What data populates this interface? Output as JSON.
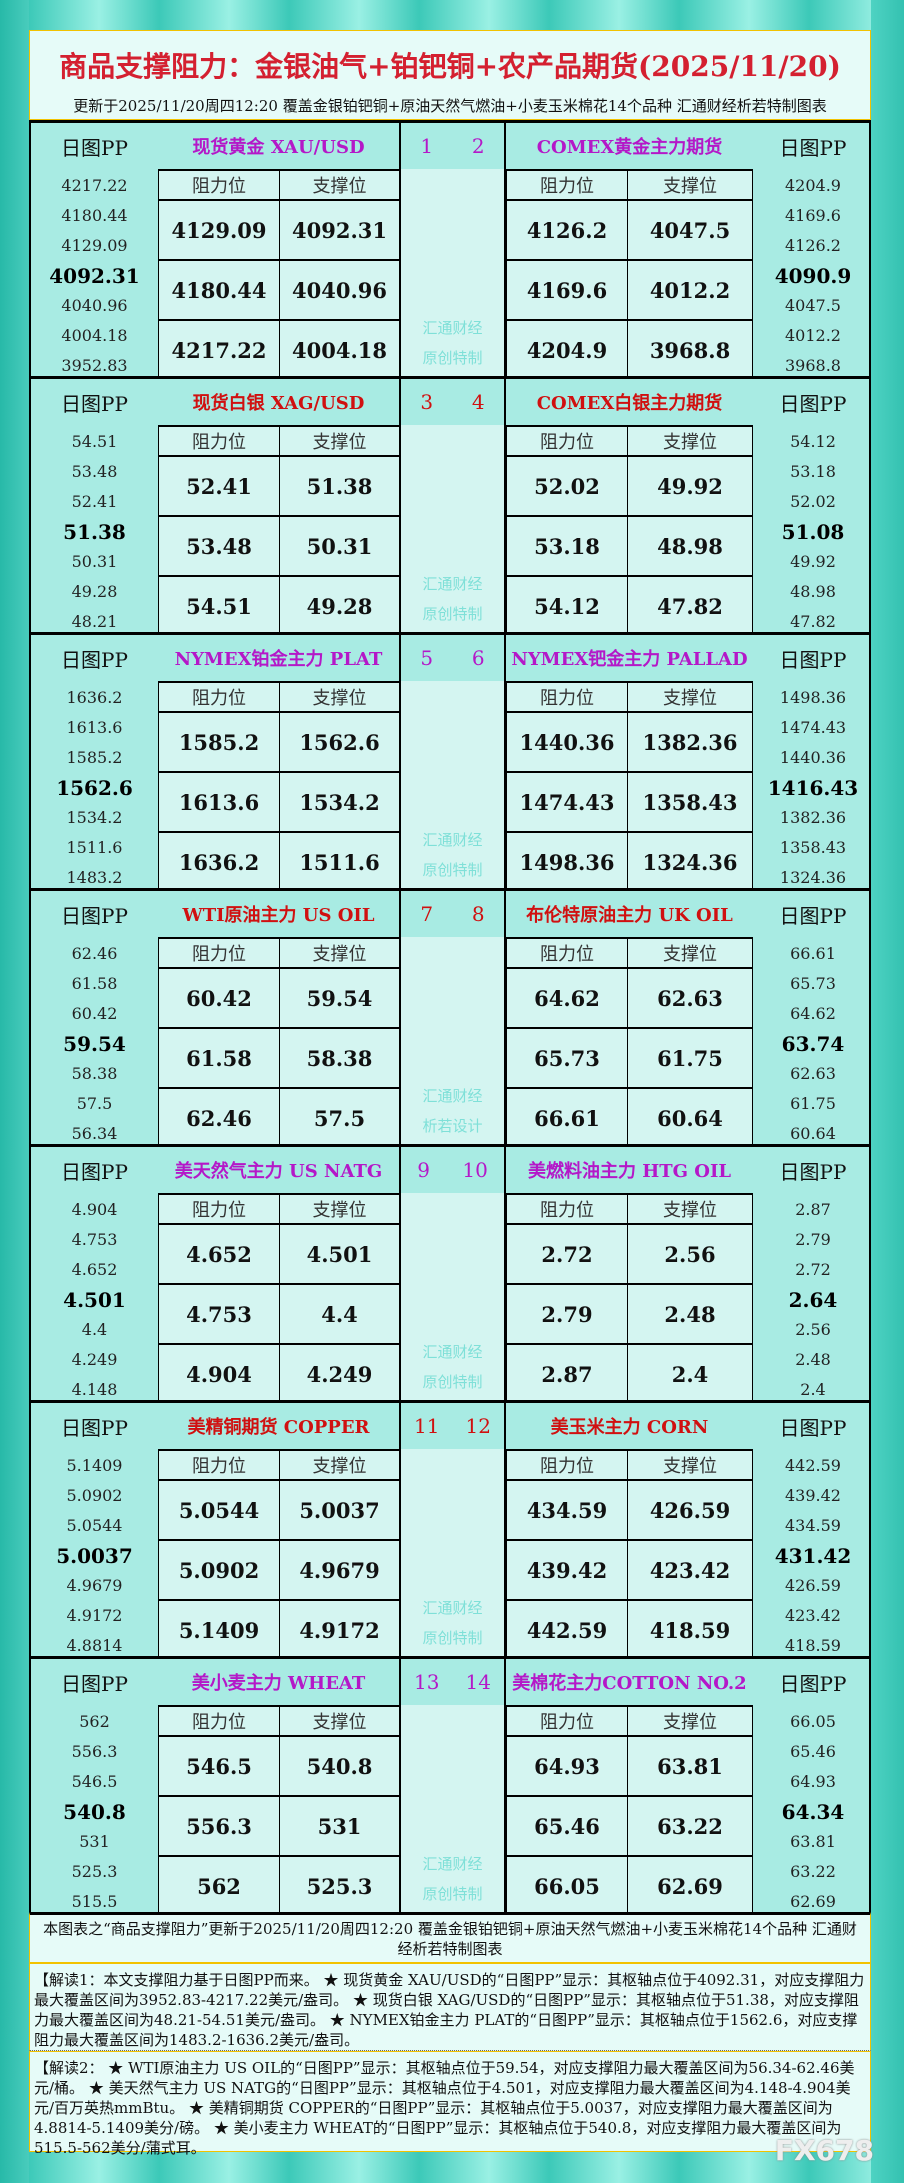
{
  "header": {
    "title": "商品支撑阻力：金银油气+铂钯铜+农产品期货(2025/11/20)",
    "subtitle": "更新于2025/11/20周四12:20  覆盖金银铂钯铜+原油天然气燃油+小麦玉米棉花14个品种  汇通财经析若特制图表"
  },
  "labels": {
    "pp": "日图PP",
    "resist": "阻力位",
    "support": "支撑位"
  },
  "colors": {
    "purple": "#b418c8",
    "red": "#d01010",
    "bg": "#a8ebe3",
    "cell": "#d4f5f1"
  },
  "sections": [
    {
      "color": "#b418c8",
      "nums": [
        "1",
        "2"
      ],
      "wm": [
        "汇通财经",
        "原创特制"
      ],
      "left": {
        "title": "现货黄金 XAU/USD",
        "pp": [
          "4217.22",
          "4180.44",
          "4129.09",
          "4092.31",
          "4040.96",
          "4004.18",
          "3952.83"
        ],
        "resist": [
          "4129.09",
          "4180.44",
          "4217.22"
        ],
        "support": [
          "4092.31",
          "4040.96",
          "4004.18"
        ]
      },
      "right": {
        "title": "COMEX黄金主力期货",
        "pp": [
          "4204.9",
          "4169.6",
          "4126.2",
          "4090.9",
          "4047.5",
          "4012.2",
          "3968.8"
        ],
        "resist": [
          "4126.2",
          "4169.6",
          "4204.9"
        ],
        "support": [
          "4047.5",
          "4012.2",
          "3968.8"
        ]
      }
    },
    {
      "color": "#d01010",
      "nums": [
        "3",
        "4"
      ],
      "wm": [
        "汇通财经",
        "原创特制"
      ],
      "left": {
        "title": "现货白银 XAG/USD",
        "pp": [
          "54.51",
          "53.48",
          "52.41",
          "51.38",
          "50.31",
          "49.28",
          "48.21"
        ],
        "resist": [
          "52.41",
          "53.48",
          "54.51"
        ],
        "support": [
          "51.38",
          "50.31",
          "49.28"
        ]
      },
      "right": {
        "title": "COMEX白银主力期货",
        "pp": [
          "54.12",
          "53.18",
          "52.02",
          "51.08",
          "49.92",
          "48.98",
          "47.82"
        ],
        "resist": [
          "52.02",
          "53.18",
          "54.12"
        ],
        "support": [
          "49.92",
          "48.98",
          "47.82"
        ]
      }
    },
    {
      "color": "#b418c8",
      "nums": [
        "5",
        "6"
      ],
      "wm": [
        "汇通财经",
        "原创特制"
      ],
      "left": {
        "title": "NYMEX铂金主力 PLAT",
        "pp": [
          "1636.2",
          "1613.6",
          "1585.2",
          "1562.6",
          "1534.2",
          "1511.6",
          "1483.2"
        ],
        "resist": [
          "1585.2",
          "1613.6",
          "1636.2"
        ],
        "support": [
          "1562.6",
          "1534.2",
          "1511.6"
        ]
      },
      "right": {
        "title": "NYMEX钯金主力 PALLAD",
        "pp": [
          "1498.36",
          "1474.43",
          "1440.36",
          "1416.43",
          "1382.36",
          "1358.43",
          "1324.36"
        ],
        "resist": [
          "1440.36",
          "1474.43",
          "1498.36"
        ],
        "support": [
          "1382.36",
          "1358.43",
          "1324.36"
        ]
      }
    },
    {
      "color": "#d01010",
      "nums": [
        "7",
        "8"
      ],
      "wm": [
        "汇通财经",
        "析若设计"
      ],
      "left": {
        "title": "WTI原油主力 US OIL",
        "pp": [
          "62.46",
          "61.58",
          "60.42",
          "59.54",
          "58.38",
          "57.5",
          "56.34"
        ],
        "resist": [
          "60.42",
          "61.58",
          "62.46"
        ],
        "support": [
          "59.54",
          "58.38",
          "57.5"
        ]
      },
      "right": {
        "title": "布伦特原油主力 UK OIL",
        "pp": [
          "66.61",
          "65.73",
          "64.62",
          "63.74",
          "62.63",
          "61.75",
          "60.64"
        ],
        "resist": [
          "64.62",
          "65.73",
          "66.61"
        ],
        "support": [
          "62.63",
          "61.75",
          "60.64"
        ]
      }
    },
    {
      "color": "#b418c8",
      "nums": [
        "9",
        "10"
      ],
      "wm": [
        "汇通财经",
        "原创特制"
      ],
      "left": {
        "title": "美天然气主力 US NATG",
        "pp": [
          "4.904",
          "4.753",
          "4.652",
          "4.501",
          "4.4",
          "4.249",
          "4.148"
        ],
        "resist": [
          "4.652",
          "4.753",
          "4.904"
        ],
        "support": [
          "4.501",
          "4.4",
          "4.249"
        ]
      },
      "right": {
        "title": "美燃料油主力 HTG OIL",
        "pp": [
          "2.87",
          "2.79",
          "2.72",
          "2.64",
          "2.56",
          "2.48",
          "2.4"
        ],
        "resist": [
          "2.72",
          "2.79",
          "2.87"
        ],
        "support": [
          "2.56",
          "2.48",
          "2.4"
        ]
      }
    },
    {
      "color": "#d01010",
      "nums": [
        "11",
        "12"
      ],
      "wm": [
        "汇通财经",
        "原创特制"
      ],
      "left": {
        "title": "美精铜期货 COPPER",
        "pp": [
          "5.1409",
          "5.0902",
          "5.0544",
          "5.0037",
          "4.9679",
          "4.9172",
          "4.8814"
        ],
        "resist": [
          "5.0544",
          "5.0902",
          "5.1409"
        ],
        "support": [
          "5.0037",
          "4.9679",
          "4.9172"
        ]
      },
      "right": {
        "title": "美玉米主力 CORN",
        "pp": [
          "442.59",
          "439.42",
          "434.59",
          "431.42",
          "426.59",
          "423.42",
          "418.59"
        ],
        "resist": [
          "434.59",
          "439.42",
          "442.59"
        ],
        "support": [
          "426.59",
          "423.42",
          "418.59"
        ]
      }
    },
    {
      "color": "#b418c8",
      "nums": [
        "13",
        "14"
      ],
      "wm": [
        "汇通财经",
        "原创特制"
      ],
      "left": {
        "title": "美小麦主力 WHEAT",
        "pp": [
          "562",
          "556.3",
          "546.5",
          "540.8",
          "531",
          "525.3",
          "515.5"
        ],
        "resist": [
          "546.5",
          "556.3",
          "562"
        ],
        "support": [
          "540.8",
          "531",
          "525.3"
        ]
      },
      "right": {
        "title": "美棉花主力COTTON NO.2",
        "pp": [
          "66.05",
          "65.46",
          "64.93",
          "64.34",
          "63.81",
          "63.22",
          "62.69"
        ],
        "resist": [
          "64.93",
          "65.46",
          "66.05"
        ],
        "support": [
          "63.81",
          "63.22",
          "62.69"
        ]
      }
    }
  ],
  "footer": {
    "note": "本图表之“商品支撑阻力”更新于2025/11/20周四12:20 覆盖金银铂钯铜+原油天然气燃油+小麦玉米棉花14个品种 汇通财经析若特制图表",
    "interp1": "【解读1：本文支撑阻力基于日图PP而来。 ★ 现货黄金 XAU/USD的“日图PP”显示：其枢轴点位于4092.31，对应支撑阻力最大覆盖区间为3952.83-4217.22美元/盎司。 ★ 现货白银 XAG/USD的“日图PP”显示：其枢轴点位于51.38，对应支撑阻力最大覆盖区间为48.21-54.51美元/盎司。 ★ NYMEX铂金主力 PLAT的“日图PP”显示：其枢轴点位于1562.6，对应支撑阻力最大覆盖区间为1483.2-1636.2美元/盎司。",
    "interp2": "【解读2： ★ WTI原油主力 US OIL的“日图PP”显示：其枢轴点位于59.54，对应支撑阻力最大覆盖区间为56.34-62.46美元/桶。 ★ 美天然气主力 US NATG的“日图PP”显示：其枢轴点位于4.501，对应支撑阻力最大覆盖区间为4.148-4.904美元/百万英热mmBtu。 ★ 美精铜期货 COPPER的“日图PP”显示：其枢轴点位于5.0037，对应支撑阻力最大覆盖区间为4.8814-5.1409美分/磅。 ★ 美小麦主力 WHEAT的“日图PP”显示：其枢轴点位于540.8，对应支撑阻力最大覆盖区间为515.5-562美分/蒲式耳。",
    "watermark": "FX678"
  }
}
